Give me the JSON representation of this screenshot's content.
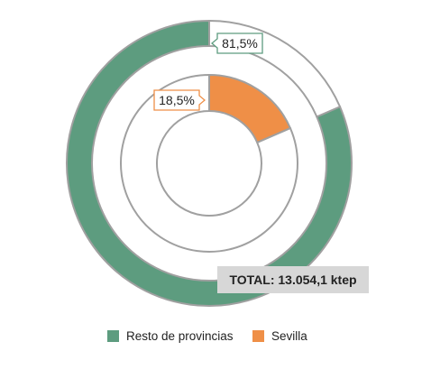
{
  "chart_data": {
    "type": "pie",
    "title": "",
    "total_label": "TOTAL: 13.054,1 ktep",
    "legend_position": "bottom",
    "series": [
      {
        "ring": "outer",
        "slices": [
          {
            "name": "Resto de provincias",
            "value": 81.5,
            "label": "81,5%",
            "color": "#5d9c7f",
            "labeled": true
          },
          {
            "name": "Sevilla",
            "value": 18.5,
            "label": "",
            "color": "#ffffff",
            "labeled": false
          }
        ]
      },
      {
        "ring": "inner",
        "slices": [
          {
            "name": "Sevilla",
            "value": 18.5,
            "label": "18,5%",
            "color": "#ef8f47",
            "labeled": true
          },
          {
            "name": "Resto de provincias",
            "value": 81.5,
            "label": "",
            "color": "#ffffff",
            "labeled": false
          }
        ]
      }
    ],
    "legend": [
      {
        "name": "Resto de provincias",
        "color": "#5d9c7f"
      },
      {
        "name": "Sevilla",
        "color": "#ef8f47"
      }
    ]
  }
}
